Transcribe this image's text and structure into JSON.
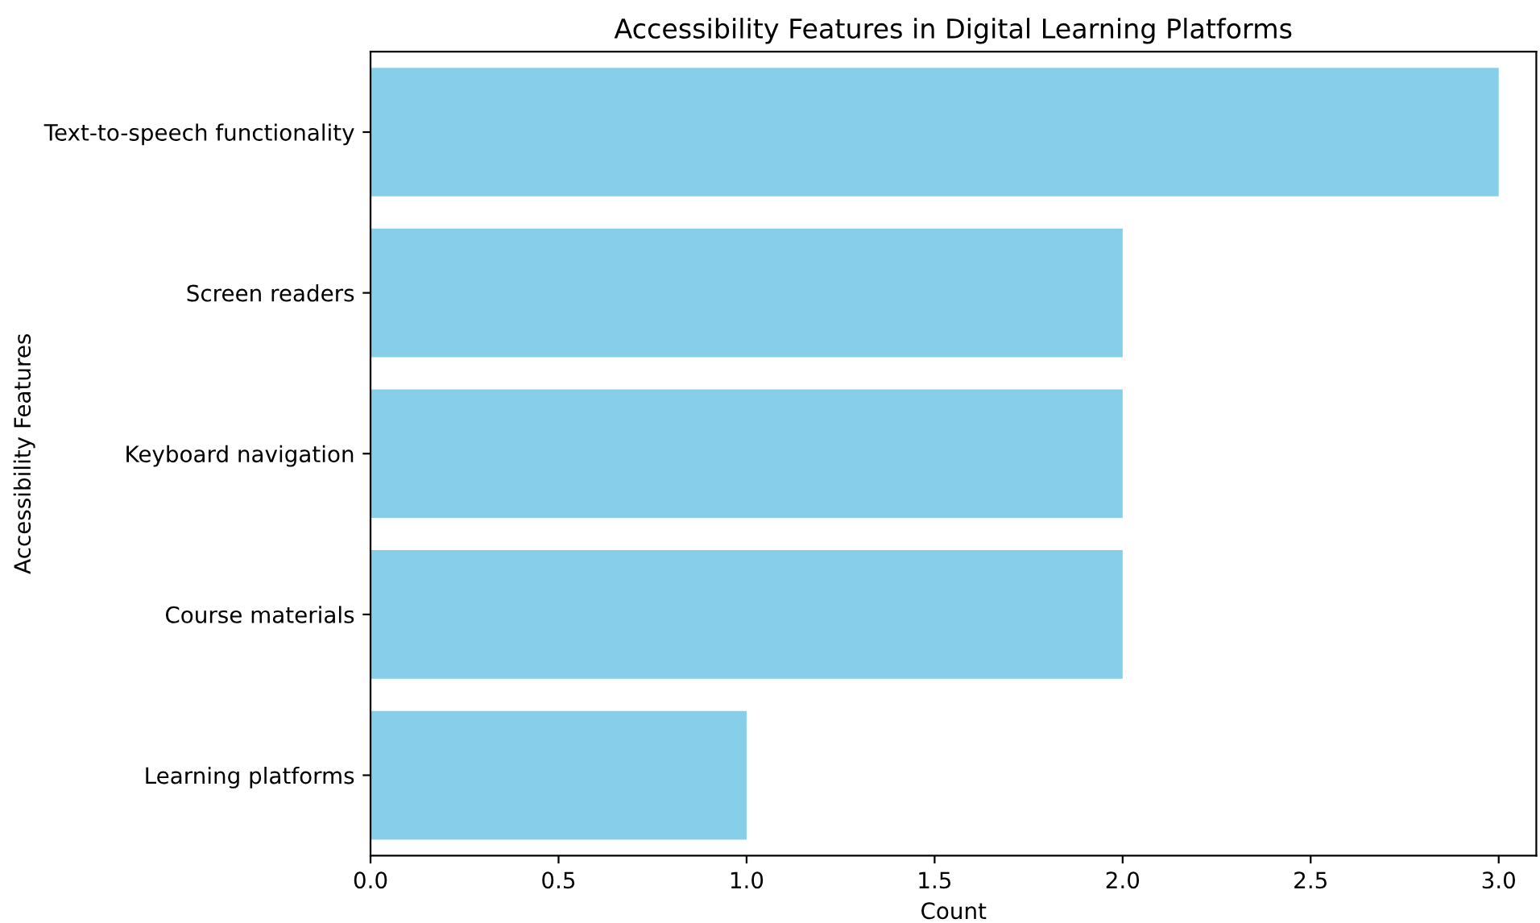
{
  "chart_data": {
    "type": "bar",
    "orientation": "horizontal",
    "title": "Accessibility Features in Digital Learning Platforms",
    "xlabel": "Count",
    "ylabel": "Accessibility Features",
    "categories": [
      "Text-to-speech functionality",
      "Screen readers",
      "Keyboard navigation",
      "Course materials",
      "Learning platforms"
    ],
    "values": [
      3,
      2,
      2,
      2,
      1
    ],
    "color": "#87ceeb",
    "xlim": [
      0,
      3.1
    ],
    "xticks": [
      {
        "value": 0,
        "label": "0.0"
      },
      {
        "value": 0.5,
        "label": "0.5"
      },
      {
        "value": 1,
        "label": "1.0"
      },
      {
        "value": 1.5,
        "label": "1.5"
      },
      {
        "value": 2,
        "label": "2.0"
      },
      {
        "value": 2.5,
        "label": "2.5"
      },
      {
        "value": 3,
        "label": "3.0"
      }
    ],
    "grid": false
  }
}
